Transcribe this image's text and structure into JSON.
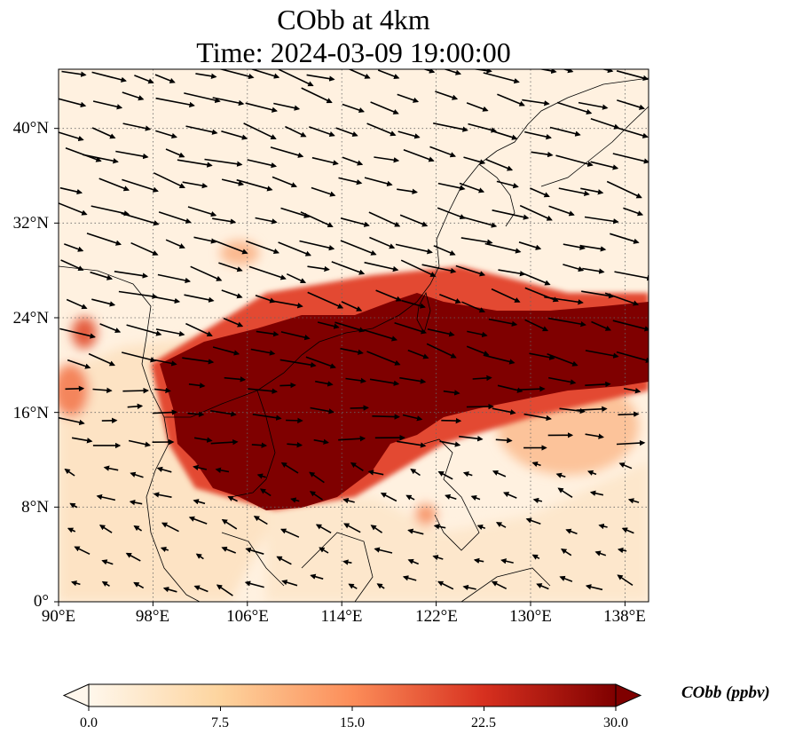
{
  "title": {
    "line1": "CObb at 4km",
    "line2": "Time: 2024-03-09 19:00:00"
  },
  "map": {
    "lon_range": [
      90,
      140
    ],
    "lat_range": [
      0,
      45
    ],
    "lon_ticks": [
      "90°E",
      "98°E",
      "106°E",
      "114°E",
      "122°E",
      "130°E",
      "138°E"
    ],
    "lat_ticks": [
      "0°",
      "8°N",
      "16°N",
      "24°N",
      "32°N",
      "40°N"
    ],
    "gridlines": true,
    "wind_vectors": true,
    "dominant_wind_direction": "west-northwest to east-southeast",
    "high_concentration_region": "Indochina, South China Sea and Taiwan, extending east toward 140°E between about 8°N and 25°N"
  },
  "colorbar": {
    "label": "CObb (ppbv)",
    "ticks": [
      "0.0",
      "7.5",
      "15.0",
      "22.5",
      "30.0"
    ],
    "min": 0,
    "max": 30,
    "colormap": "OrRd",
    "extend": "both",
    "colors": {
      "low": "#fff7ec",
      "mid_low": "#fdd49e",
      "mid": "#fc8d59",
      "mid_high": "#d7301f",
      "high": "#7f0000"
    }
  }
}
